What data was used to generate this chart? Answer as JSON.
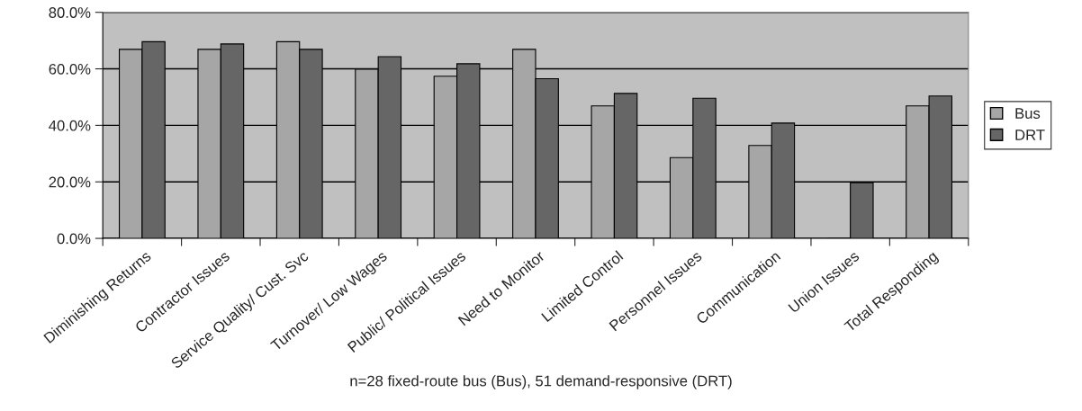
{
  "chart_data": {
    "type": "bar",
    "categories": [
      "Diminishing Returns",
      "Contractor Issues",
      "Service Quality/ Cust. Svc",
      "Turnover/ Low Wages",
      "Public/ Political Issues",
      "Need to Monitor",
      "Limited Control",
      "Personnel Issues",
      "Communication",
      "Union Issues",
      "Total Responding"
    ],
    "series": [
      {
        "name": "Bus",
        "color": "#a6a6a6",
        "values": [
          66.9,
          66.9,
          69.6,
          59.9,
          57.4,
          66.9,
          46.9,
          28.6,
          32.9,
          0,
          46.9
        ]
      },
      {
        "name": "DRT",
        "color": "#666666",
        "values": [
          69.6,
          68.8,
          66.9,
          64.3,
          61.8,
          56.5,
          51.3,
          49.6,
          40.8,
          19.7,
          50.4
        ]
      }
    ],
    "ylim": [
      0,
      80
    ],
    "yticks": [
      {
        "value": 0,
        "label": "0.0%"
      },
      {
        "value": 20,
        "label": "20.0%"
      },
      {
        "value": 40,
        "label": "40.0%"
      },
      {
        "value": 60,
        "label": "60.0%"
      },
      {
        "value": 80,
        "label": "80.0%"
      }
    ],
    "grid": "y",
    "legend": "right",
    "annotations": [
      "n=28 fixed-route bus (Bus), 51 demand-responsive (DRT)"
    ]
  }
}
